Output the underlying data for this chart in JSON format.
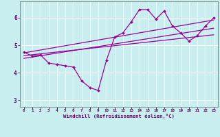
{
  "xlabel": "Windchill (Refroidissement éolien,°C)",
  "bg_color": "#c8eef0",
  "grid_color": "#ffffff",
  "line_color": "#990099",
  "marker_color": "#990099",
  "xlim": [
    -0.5,
    23.5
  ],
  "ylim": [
    2.75,
    6.6
  ],
  "xticks": [
    0,
    1,
    2,
    3,
    4,
    5,
    6,
    7,
    8,
    9,
    10,
    11,
    12,
    13,
    14,
    15,
    16,
    17,
    18,
    19,
    20,
    21,
    22,
    23
  ],
  "yticks": [
    3,
    4,
    5,
    6
  ],
  "main_line_x": [
    0,
    1,
    2,
    3,
    4,
    5,
    6,
    7,
    8,
    9,
    10,
    11,
    12,
    13,
    14,
    15,
    16,
    17,
    18,
    19,
    20,
    21,
    22,
    23
  ],
  "main_line_y": [
    4.75,
    4.6,
    4.65,
    4.35,
    4.3,
    4.25,
    4.2,
    3.7,
    3.45,
    3.35,
    4.45,
    5.3,
    5.45,
    5.85,
    6.3,
    6.3,
    5.95,
    6.25,
    5.7,
    5.45,
    5.15,
    5.35,
    5.7,
    6.0
  ],
  "reg_line1_x": [
    0,
    23
  ],
  "reg_line1_y": [
    4.72,
    5.92
  ],
  "reg_line2_x": [
    0,
    23
  ],
  "reg_line2_y": [
    4.62,
    5.38
  ],
  "reg_line3_x": [
    0,
    23
  ],
  "reg_line3_y": [
    4.52,
    5.62
  ]
}
